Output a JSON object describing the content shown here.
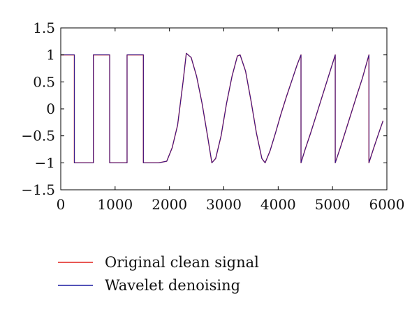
{
  "chart_data": {
    "type": "line",
    "title": "",
    "xlabel": "",
    "ylabel": "",
    "xlim": [
      0,
      6000
    ],
    "ylim": [
      -1.5,
      1.5
    ],
    "x_ticks": [
      0,
      1000,
      2000,
      3000,
      4000,
      5000,
      6000
    ],
    "x_tick_labels": [
      "0",
      "1000",
      "2000",
      "3000",
      "4000",
      "5000",
      "6000"
    ],
    "y_ticks": [
      1.5,
      1,
      0.5,
      0,
      -0.5,
      -1,
      -1.5
    ],
    "y_tick_labels": [
      "1.5",
      "1",
      "0.5",
      "0",
      "−0.5",
      "−1",
      "−1.5"
    ],
    "grid": false,
    "legend_position": "bottom",
    "series": [
      {
        "name": "Original clean signal",
        "color": "#e0201b",
        "x": [
          0,
          250,
          250,
          600,
          600,
          900,
          900,
          1220,
          1220,
          1520,
          1520,
          1600,
          1800,
          1950,
          2050,
          2150,
          2250,
          2310,
          2400,
          2500,
          2600,
          2700,
          2780,
          2850,
          2950,
          3050,
          3150,
          3250,
          3300,
          3400,
          3500,
          3600,
          3700,
          3760,
          3850,
          3950,
          4050,
          4150,
          4250,
          4350,
          4420,
          4420,
          4500,
          4600,
          4700,
          4800,
          4900,
          5050,
          5050,
          5150,
          5250,
          5350,
          5450,
          5550,
          5670,
          5670,
          5750,
          5850,
          5930
        ],
        "values": [
          1.0,
          1.0,
          -1.0,
          -1.0,
          1.0,
          1.0,
          -1.0,
          -1.0,
          1.0,
          1.0,
          -1.0,
          -1.0,
          -1.0,
          -0.97,
          -0.72,
          -0.3,
          0.5,
          1.03,
          0.95,
          0.6,
          0.1,
          -0.5,
          -1.0,
          -0.92,
          -0.5,
          0.1,
          0.6,
          0.98,
          1.0,
          0.7,
          0.15,
          -0.45,
          -0.92,
          -1.0,
          -0.78,
          -0.45,
          -0.1,
          0.22,
          0.52,
          0.82,
          1.0,
          -1.0,
          -0.74,
          -0.44,
          -0.12,
          0.2,
          0.52,
          1.0,
          -1.0,
          -0.7,
          -0.38,
          -0.06,
          0.26,
          0.57,
          1.0,
          -1.0,
          -0.75,
          -0.45,
          -0.22
        ]
      },
      {
        "name": "Wavelet denoising",
        "color": "#1a1aa0",
        "x": [
          0,
          250,
          250,
          600,
          600,
          900,
          900,
          1220,
          1220,
          1520,
          1520,
          1600,
          1800,
          1950,
          2050,
          2150,
          2250,
          2310,
          2400,
          2500,
          2600,
          2700,
          2780,
          2850,
          2950,
          3050,
          3150,
          3250,
          3300,
          3400,
          3500,
          3600,
          3700,
          3760,
          3850,
          3950,
          4050,
          4150,
          4250,
          4350,
          4420,
          4420,
          4500,
          4600,
          4700,
          4800,
          4900,
          5050,
          5050,
          5150,
          5250,
          5350,
          5450,
          5550,
          5670,
          5670,
          5750,
          5850,
          5930
        ],
        "values": [
          1.0,
          1.0,
          -1.0,
          -1.0,
          1.0,
          1.0,
          -1.0,
          -1.0,
          1.0,
          1.0,
          -1.0,
          -1.0,
          -1.0,
          -0.97,
          -0.72,
          -0.3,
          0.5,
          1.03,
          0.95,
          0.6,
          0.1,
          -0.5,
          -1.0,
          -0.92,
          -0.5,
          0.1,
          0.6,
          0.98,
          1.0,
          0.7,
          0.15,
          -0.45,
          -0.92,
          -1.0,
          -0.78,
          -0.45,
          -0.1,
          0.22,
          0.52,
          0.82,
          1.0,
          -1.0,
          -0.74,
          -0.44,
          -0.12,
          0.2,
          0.52,
          1.0,
          -1.0,
          -0.7,
          -0.38,
          -0.06,
          0.26,
          0.57,
          1.0,
          -1.0,
          -0.75,
          -0.45,
          -0.22
        ]
      }
    ]
  }
}
